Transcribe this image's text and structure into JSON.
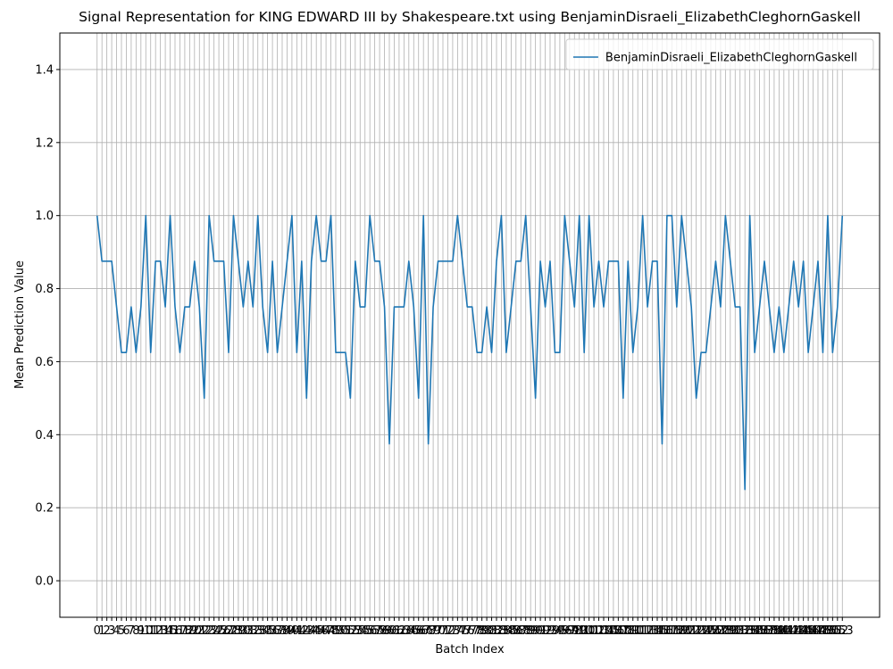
{
  "chart_data": {
    "type": "line",
    "title": "Signal Representation for KING EDWARD III by Shakespeare.txt using BenjaminDisraeli_ElizabethCleghornGaskell",
    "x_label": "Batch Index",
    "y_label": "Mean Prediction Value",
    "x": [
      0,
      1,
      2,
      3,
      4,
      5,
      6,
      7,
      8,
      9,
      10,
      11,
      12,
      13,
      14,
      15,
      16,
      17,
      18,
      19,
      20,
      21,
      22,
      23,
      24,
      25,
      26,
      27,
      28,
      29,
      30,
      31,
      32,
      33,
      34,
      35,
      36,
      37,
      38,
      39,
      40,
      41,
      42,
      43,
      44,
      45,
      46,
      47,
      48,
      49,
      50,
      51,
      52,
      53,
      54,
      55,
      56,
      57,
      58,
      59,
      60,
      61,
      62,
      63,
      64,
      65,
      66,
      67,
      68,
      69,
      70,
      71,
      72,
      73,
      74,
      75,
      76,
      77,
      78,
      79,
      80,
      81,
      82,
      83,
      84,
      85,
      86,
      87,
      88,
      89,
      90,
      91,
      92,
      93,
      94,
      95,
      96,
      97,
      98,
      99,
      100,
      101,
      102,
      103,
      104,
      105,
      106,
      107,
      108,
      109,
      110,
      111,
      112,
      113,
      114,
      115,
      116,
      117,
      118,
      119,
      120,
      121,
      122,
      123,
      124,
      125,
      126,
      127,
      128,
      129,
      130,
      131,
      132,
      133,
      134,
      135,
      136,
      137,
      138,
      139,
      140,
      141,
      142,
      143,
      144,
      145,
      146,
      147,
      148,
      149,
      150,
      151,
      152,
      153
    ],
    "series": [
      {
        "name": "BenjaminDisraeli_ElizabethCleghornGaskell",
        "color": "#1f77b4",
        "values": [
          1.0,
          0.875,
          0.875,
          0.875,
          0.75,
          0.625,
          0.625,
          0.75,
          0.625,
          0.75,
          1.0,
          0.625,
          0.875,
          0.875,
          0.75,
          1.0,
          0.75,
          0.625,
          0.75,
          0.75,
          0.875,
          0.75,
          0.5,
          1.0,
          0.875,
          0.875,
          0.875,
          0.625,
          1.0,
          0.875,
          0.75,
          0.875,
          0.75,
          1.0,
          0.75,
          0.625,
          0.875,
          0.625,
          0.75,
          0.875,
          1.0,
          0.625,
          0.875,
          0.5,
          0.875,
          1.0,
          0.875,
          0.875,
          1.0,
          0.625,
          0.625,
          0.625,
          0.5,
          0.875,
          0.75,
          0.75,
          1.0,
          0.875,
          0.875,
          0.75,
          0.375,
          0.75,
          0.75,
          0.75,
          0.875,
          0.75,
          0.5,
          1.0,
          0.375,
          0.75,
          0.875,
          0.875,
          0.875,
          0.875,
          1.0,
          0.875,
          0.75,
          0.75,
          0.625,
          0.625,
          0.75,
          0.625,
          0.875,
          1.0,
          0.625,
          0.75,
          0.875,
          0.875,
          1.0,
          0.75,
          0.5,
          0.875,
          0.75,
          0.875,
          0.625,
          0.625,
          1.0,
          0.875,
          0.75,
          1.0,
          0.625,
          1.0,
          0.75,
          0.875,
          0.75,
          0.875,
          0.875,
          0.875,
          0.5,
          0.875,
          0.625,
          0.75,
          1.0,
          0.75,
          0.875,
          0.875,
          0.375,
          1.0,
          1.0,
          0.75,
          1.0,
          0.875,
          0.75,
          0.5,
          0.625,
          0.625,
          0.75,
          0.875,
          0.75,
          1.0,
          0.875,
          0.75,
          0.75,
          0.25,
          1.0,
          0.625,
          0.75,
          0.875,
          0.75,
          0.625,
          0.75,
          0.625,
          0.75,
          0.875,
          0.75,
          0.875,
          0.625,
          0.75,
          0.875,
          0.625,
          1.0,
          0.625,
          0.75,
          1.0
        ]
      }
    ],
    "xlim": [
      -7.65,
      160.65
    ],
    "xticks": [
      0,
      1,
      2,
      3,
      4,
      5,
      6,
      7,
      8,
      9,
      10,
      11,
      12,
      13,
      14,
      15,
      16,
      17,
      18,
      19,
      20,
      21,
      22,
      23,
      24,
      25,
      26,
      27,
      28,
      29,
      30,
      31,
      32,
      33,
      34,
      35,
      36,
      37,
      38,
      39,
      40,
      41,
      42,
      43,
      44,
      45,
      46,
      47,
      48,
      49,
      50,
      51,
      52,
      53,
      54,
      55,
      56,
      57,
      58,
      59,
      60,
      61,
      62,
      63,
      64,
      65,
      66,
      67,
      68,
      69,
      70,
      71,
      72,
      73,
      74,
      75,
      76,
      77,
      78,
      79,
      80,
      81,
      82,
      83,
      84,
      85,
      86,
      87,
      88,
      89,
      90,
      91,
      92,
      93,
      94,
      95,
      96,
      97,
      98,
      99,
      100,
      101,
      102,
      103,
      104,
      105,
      106,
      107,
      108,
      109,
      110,
      111,
      112,
      113,
      114,
      115,
      116,
      117,
      118,
      119,
      120,
      121,
      122,
      123,
      124,
      125,
      126,
      127,
      128,
      129,
      130,
      131,
      132,
      133,
      134,
      135,
      136,
      137,
      138,
      139,
      140,
      141,
      142,
      143,
      144,
      145,
      146,
      147,
      148,
      149,
      150,
      151,
      152,
      153
    ],
    "ylim": [
      -0.1,
      1.5
    ],
    "yticks": [
      {
        "value": 0,
        "label": "0.0"
      },
      0.2,
      0.4,
      0.6,
      0.8,
      {
        "value": 1,
        "label": "1.0"
      },
      1.2,
      1.4
    ],
    "grid": true,
    "legend": "upper right"
  }
}
